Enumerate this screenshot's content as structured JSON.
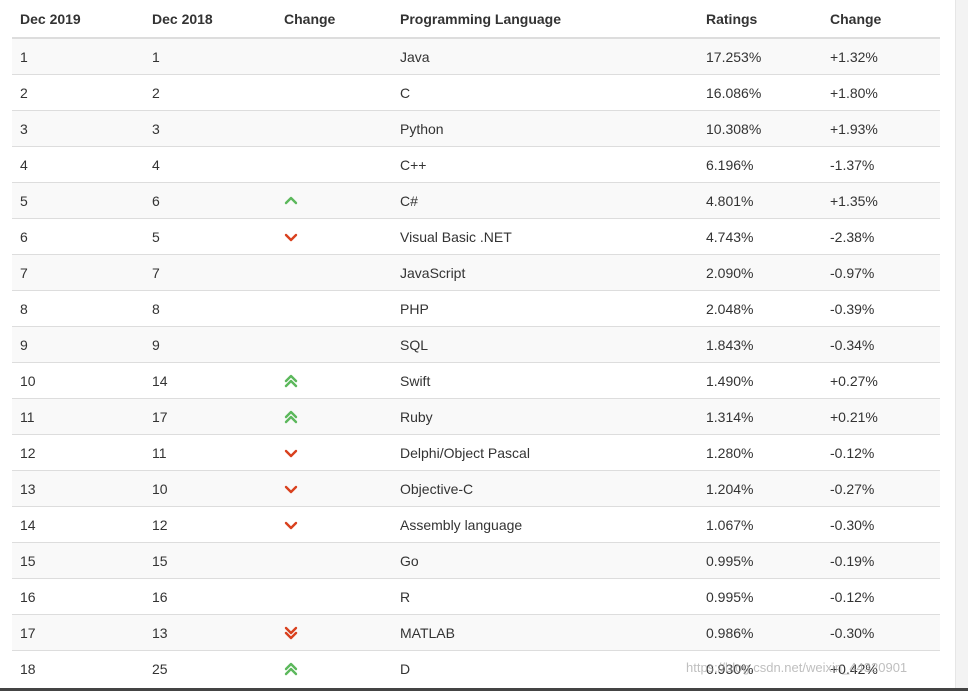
{
  "table": {
    "headers": [
      "Dec 2019",
      "Dec 2018",
      "Change",
      "Programming Language",
      "Ratings",
      "Change"
    ],
    "rows": [
      {
        "dec2019": "1",
        "dec2018": "1",
        "trend": "none",
        "language": "Java",
        "rating": "17.253%",
        "change": "+1.32%"
      },
      {
        "dec2019": "2",
        "dec2018": "2",
        "trend": "none",
        "language": "C",
        "rating": "16.086%",
        "change": "+1.80%"
      },
      {
        "dec2019": "3",
        "dec2018": "3",
        "trend": "none",
        "language": "Python",
        "rating": "10.308%",
        "change": "+1.93%"
      },
      {
        "dec2019": "4",
        "dec2018": "4",
        "trend": "none",
        "language": "C++",
        "rating": "6.196%",
        "change": "-1.37%"
      },
      {
        "dec2019": "5",
        "dec2018": "6",
        "trend": "up",
        "language": "C#",
        "rating": "4.801%",
        "change": "+1.35%"
      },
      {
        "dec2019": "6",
        "dec2018": "5",
        "trend": "down",
        "language": "Visual Basic .NET",
        "rating": "4.743%",
        "change": "-2.38%"
      },
      {
        "dec2019": "7",
        "dec2018": "7",
        "trend": "none",
        "language": "JavaScript",
        "rating": "2.090%",
        "change": "-0.97%"
      },
      {
        "dec2019": "8",
        "dec2018": "8",
        "trend": "none",
        "language": "PHP",
        "rating": "2.048%",
        "change": "-0.39%"
      },
      {
        "dec2019": "9",
        "dec2018": "9",
        "trend": "none",
        "language": "SQL",
        "rating": "1.843%",
        "change": "-0.34%"
      },
      {
        "dec2019": "10",
        "dec2018": "14",
        "trend": "double-up",
        "language": "Swift",
        "rating": "1.490%",
        "change": "+0.27%"
      },
      {
        "dec2019": "11",
        "dec2018": "17",
        "trend": "double-up",
        "language": "Ruby",
        "rating": "1.314%",
        "change": "+0.21%"
      },
      {
        "dec2019": "12",
        "dec2018": "11",
        "trend": "down",
        "language": "Delphi/Object Pascal",
        "rating": "1.280%",
        "change": "-0.12%"
      },
      {
        "dec2019": "13",
        "dec2018": "10",
        "trend": "down",
        "language": "Objective-C",
        "rating": "1.204%",
        "change": "-0.27%"
      },
      {
        "dec2019": "14",
        "dec2018": "12",
        "trend": "down",
        "language": "Assembly language",
        "rating": "1.067%",
        "change": "-0.30%"
      },
      {
        "dec2019": "15",
        "dec2018": "15",
        "trend": "none",
        "language": "Go",
        "rating": "0.995%",
        "change": "-0.19%"
      },
      {
        "dec2019": "16",
        "dec2018": "16",
        "trend": "none",
        "language": "R",
        "rating": "0.995%",
        "change": "-0.12%"
      },
      {
        "dec2019": "17",
        "dec2018": "13",
        "trend": "double-down",
        "language": "MATLAB",
        "rating": "0.986%",
        "change": "-0.30%"
      },
      {
        "dec2019": "18",
        "dec2018": "25",
        "trend": "double-up",
        "language": "D",
        "rating": "0.930%",
        "change": "+0.42%"
      }
    ]
  },
  "icons": {
    "up": "chevron-up-icon",
    "down": "chevron-down-icon",
    "double-up": "double-chevron-up-icon",
    "double-down": "double-chevron-down-icon"
  },
  "colors": {
    "up": "#5cb85c",
    "down": "#d9411e"
  },
  "watermark": "https://blog.csdn.net/weixin_44320901"
}
